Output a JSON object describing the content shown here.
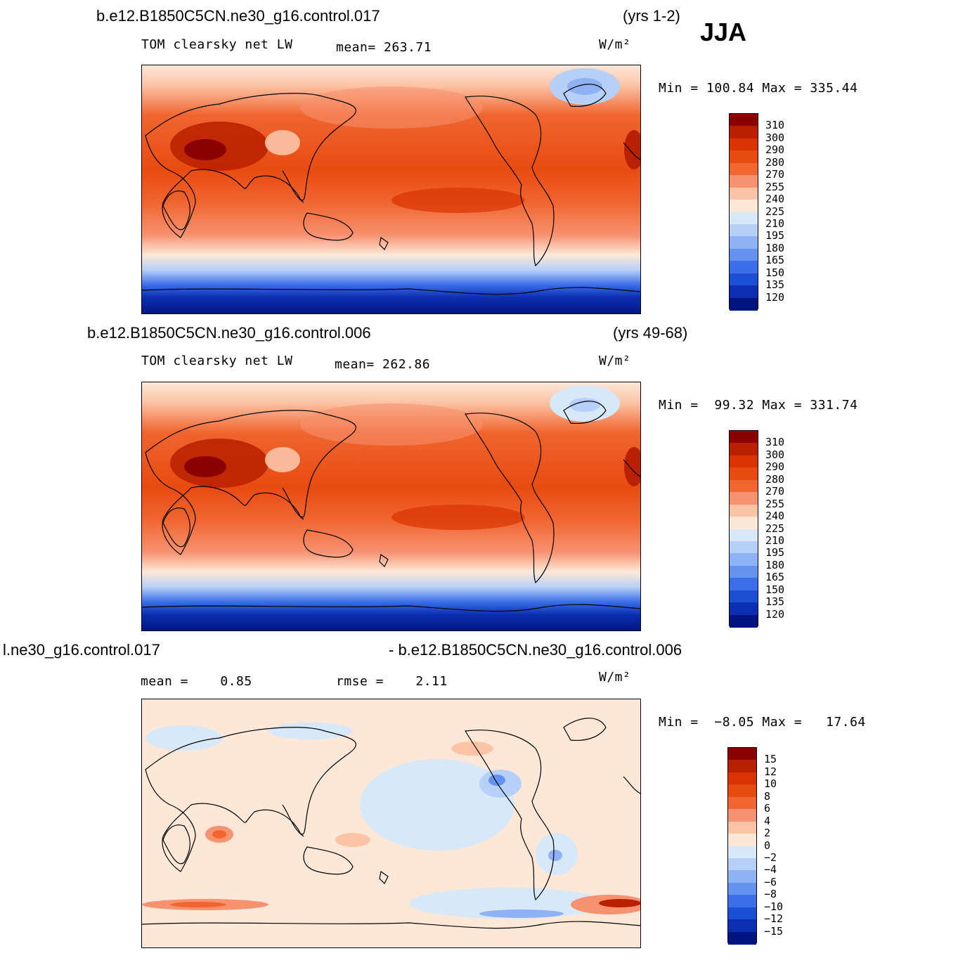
{
  "season": "JJA",
  "panels": [
    {
      "case": "b.e12.B1850C5CN.ne30_g16.control.017",
      "years": "(yrs 1-2)",
      "variable": "TOM clearsky net LW",
      "stat": "mean= 263.71",
      "units": "W/m²",
      "minmax": "Min = 100.84 Max = 335.44",
      "colorbar": {
        "labels": [
          "310",
          "300",
          "290",
          "280",
          "270",
          "255",
          "240",
          "225",
          "210",
          "195",
          "180",
          "165",
          "150",
          "135",
          "120"
        ],
        "colors": [
          "#8b0000",
          "#b82000",
          "#d83300",
          "#e84b10",
          "#f06530",
          "#f79270",
          "#fcc4a6",
          "#fde8d8",
          "#d7e8f8",
          "#b7d0f8",
          "#8fb2f4",
          "#6392ef",
          "#3b6ee8",
          "#1a4fd6",
          "#0b2fb0",
          "#00147f"
        ]
      }
    },
    {
      "case": "b.e12.B1850C5CN.ne30_g16.control.006",
      "years": "(yrs 49-68)",
      "variable": "TOM clearsky net LW",
      "stat": "mean= 262.86",
      "units": "W/m²",
      "minmax": "Min =  99.32 Max = 331.74",
      "colorbar": {
        "labels": [
          "310",
          "300",
          "290",
          "280",
          "270",
          "255",
          "240",
          "225",
          "210",
          "195",
          "180",
          "165",
          "150",
          "135",
          "120"
        ],
        "colors": [
          "#8b0000",
          "#b82000",
          "#d83300",
          "#e84b10",
          "#f06530",
          "#f79270",
          "#fcc4a6",
          "#fde8d8",
          "#d7e8f8",
          "#b7d0f8",
          "#8fb2f4",
          "#6392ef",
          "#3b6ee8",
          "#1a4fd6",
          "#0b2fb0",
          "#00147f"
        ]
      }
    },
    {
      "case_left": "l.ne30_g16.control.017",
      "case_right": "- b.e12.B1850C5CN.ne30_g16.control.006",
      "stat_mean": "mean =    0.85",
      "stat_rmse": "rmse =    2.11",
      "units": "W/m²",
      "minmax": "Min =  −8.05 Max =   17.64",
      "colorbar": {
        "labels": [
          "15",
          "12",
          "10",
          "8",
          "6",
          "4",
          "2",
          "0",
          "−2",
          "−4",
          "−6",
          "−8",
          "−10",
          "−12",
          "−15"
        ],
        "colors": [
          "#8b0000",
          "#b82000",
          "#d83300",
          "#e84b10",
          "#f06530",
          "#f79270",
          "#fcc4a6",
          "#fde8d8",
          "#d7e8f8",
          "#b7d0f8",
          "#8fb2f4",
          "#6392ef",
          "#3b6ee8",
          "#1a4fd6",
          "#0b2fb0",
          "#00147f"
        ]
      }
    }
  ]
}
